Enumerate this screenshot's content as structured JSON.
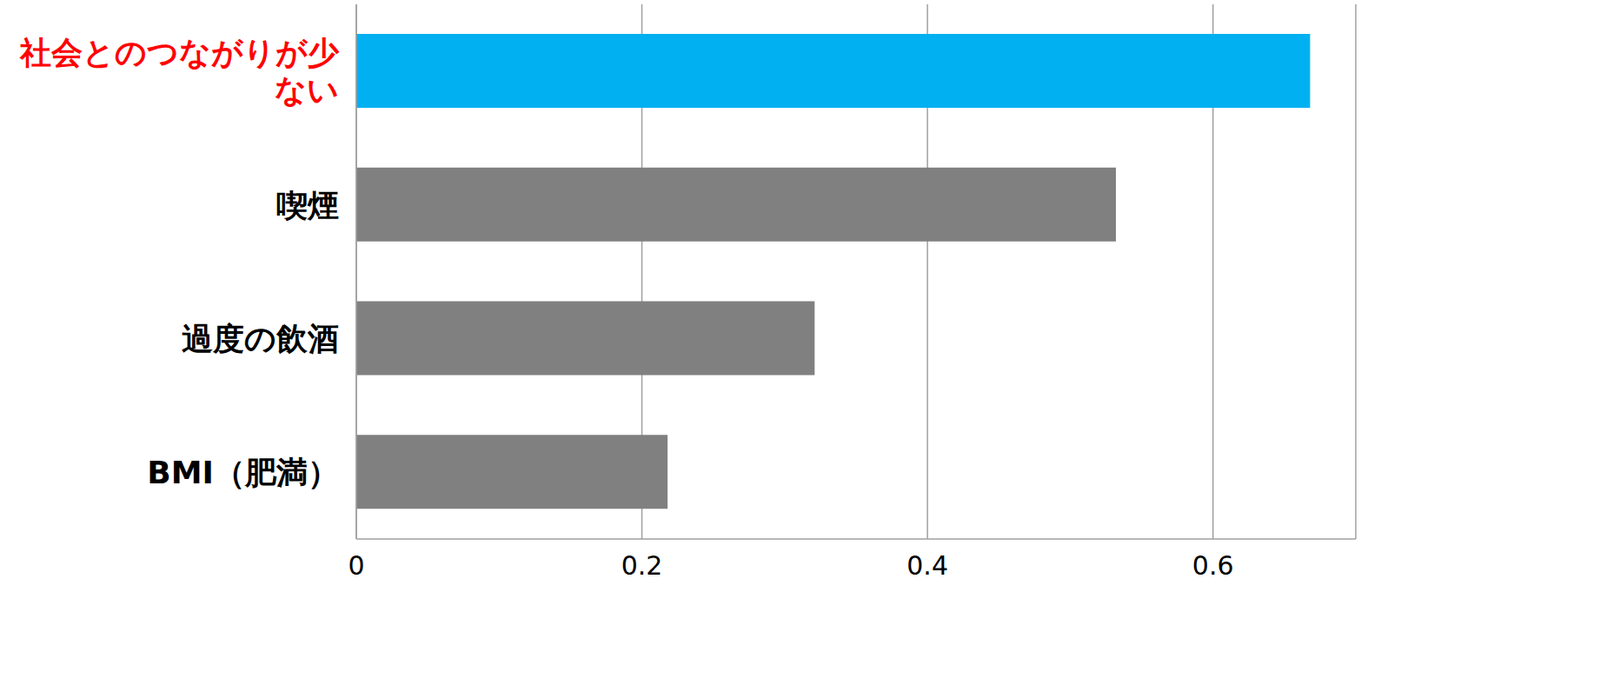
{
  "chart_data": {
    "type": "bar",
    "orientation": "horizontal",
    "categories": [
      "社会とのつながりが少ない",
      "喫煙",
      "過度の飲酒",
      "BMI（肥満）"
    ],
    "values": [
      0.668,
      0.532,
      0.321,
      0.218
    ],
    "colors": [
      "#00b0f0",
      "#808080",
      "#808080",
      "#808080"
    ],
    "xlim": [
      0,
      0.7
    ],
    "xticks": [
      0,
      0.2,
      0.4,
      0.6
    ],
    "grid": true
  }
}
